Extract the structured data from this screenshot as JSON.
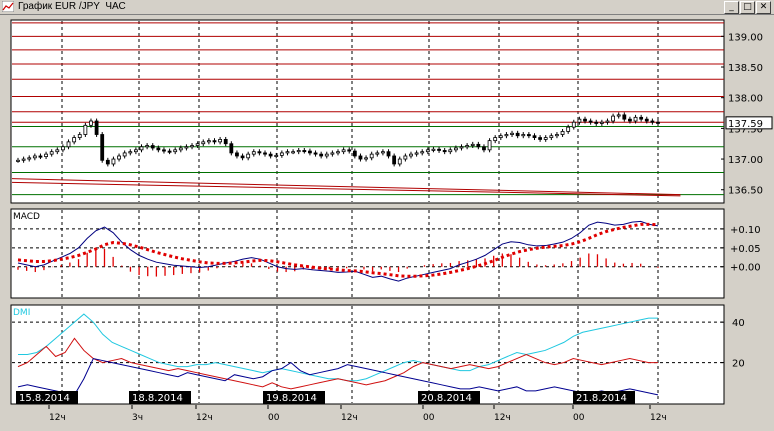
{
  "window": {
    "title": "График EUR /JPY  ЧАС",
    "minimize_label": "_",
    "maximize_label": "□",
    "close_label": "✕"
  },
  "colors": {
    "background": "#ffffff",
    "frame": "#d4d0c8",
    "grid": "#000000",
    "resistance_line": "#b00000",
    "support_line": "#007000",
    "macd_line": "#000080",
    "macd_signal": "#e00000",
    "macd_hist": "#e00000",
    "dmi_adx": "#20c8e0",
    "dmi_plus": "#d01010",
    "dmi_minus": "#000090",
    "label_text": "#000000",
    "date_label_bg": "#000000",
    "date_label_text": "#ffffff",
    "price_marker_bg": "#ffffff"
  },
  "chart_data": [
    {
      "type": "candlestick",
      "panel": "price",
      "symbol": "EUR/JPY",
      "timeframe": "1H",
      "ylim": [
        136.3,
        139.25
      ],
      "yticks": [
        137.0,
        137.5,
        138.0,
        138.5,
        139.0,
        136.5
      ],
      "ytick_labels": [
        "137.00",
        "137.50",
        "138.00",
        "138.50",
        "139.00",
        "136.50"
      ],
      "last_price_label": "137.59",
      "last_price": 137.59,
      "grid": true,
      "horizontal_levels_red": [
        139.22,
        139.0,
        138.78,
        138.55,
        138.3,
        138.02,
        137.77,
        137.6
      ],
      "horizontal_levels_green": [
        137.53,
        137.2,
        136.78,
        136.42
      ],
      "trendlines": [
        {
          "from_x": 0,
          "from_y": 136.68,
          "to_x": 118,
          "to_y": 136.42,
          "color": "red"
        },
        {
          "from_x": 0,
          "from_y": 136.62,
          "to_x": 118,
          "to_y": 136.4,
          "color": "darkred"
        }
      ],
      "close": [
        136.98,
        137.0,
        137.02,
        137.05,
        137.04,
        137.08,
        137.12,
        137.15,
        137.2,
        137.28,
        137.35,
        137.4,
        137.55,
        137.62,
        137.4,
        136.98,
        136.92,
        137.0,
        137.05,
        137.1,
        137.12,
        137.15,
        137.2,
        137.22,
        137.18,
        137.15,
        137.13,
        137.12,
        137.15,
        137.18,
        137.2,
        137.22,
        137.25,
        137.28,
        137.3,
        137.28,
        137.32,
        137.25,
        137.1,
        137.05,
        137.02,
        137.08,
        137.12,
        137.1,
        137.08,
        137.05,
        137.06,
        137.1,
        137.12,
        137.12,
        137.14,
        137.13,
        137.1,
        137.08,
        137.05,
        137.08,
        137.1,
        137.12,
        137.15,
        137.13,
        137.05,
        137.0,
        137.02,
        137.08,
        137.1,
        137.12,
        137.05,
        136.92,
        137.0,
        137.05,
        137.08,
        137.1,
        137.12,
        137.15,
        137.16,
        137.14,
        137.12,
        137.15,
        137.18,
        137.2,
        137.22,
        137.24,
        137.2,
        137.15,
        137.3,
        137.35,
        137.38,
        137.4,
        137.42,
        137.38,
        137.4,
        137.38,
        137.35,
        137.32,
        137.35,
        137.38,
        137.4,
        137.45,
        137.52,
        137.6,
        137.65,
        137.62,
        137.6,
        137.58,
        137.6,
        137.62,
        137.7,
        137.72,
        137.65,
        137.62,
        137.68,
        137.65,
        137.62,
        137.6,
        137.59
      ],
      "x_date_labels": [
        "15.8.2014",
        "18.8.2014",
        "19.8.2014",
        "20.8.2014",
        "21.8.2014"
      ],
      "x_hour_labels": [
        "12ч",
        "3ч",
        "12ч",
        "00",
        "12ч",
        "00",
        "12ч",
        "00",
        "12ч"
      ]
    },
    {
      "type": "line",
      "panel": "macd",
      "title": "MACD",
      "ylim": [
        -0.08,
        0.15
      ],
      "yticks": [
        0.1,
        0.05,
        0.0
      ],
      "ytick_labels": [
        "+0.10",
        "+0.05",
        "+0.00"
      ],
      "series": [
        {
          "key": "macd",
          "values": [
            0.01,
            0.005,
            0.0,
            0.005,
            0.015,
            0.025,
            0.035,
            0.05,
            0.075,
            0.095,
            0.105,
            0.09,
            0.065,
            0.045,
            0.03,
            0.02,
            0.012,
            0.008,
            0.004,
            0.002,
            0.0,
            -0.002,
            0.0,
            0.005,
            0.01,
            0.014,
            0.02,
            0.024,
            0.02,
            0.01,
            0.0,
            -0.005,
            -0.007,
            -0.005,
            -0.008,
            -0.01,
            -0.012,
            -0.015,
            -0.014,
            -0.012,
            -0.02,
            -0.028,
            -0.025,
            -0.032,
            -0.038,
            -0.03,
            -0.025,
            -0.02,
            -0.015,
            -0.01,
            -0.005,
            0.005,
            0.012,
            0.02,
            0.03,
            0.045,
            0.06,
            0.066,
            0.064,
            0.058,
            0.055,
            0.056,
            0.06,
            0.065,
            0.075,
            0.09,
            0.11,
            0.118,
            0.115,
            0.11,
            0.112,
            0.118,
            0.12,
            0.112,
            0.108
          ]
        },
        {
          "key": "signal",
          "values": [
            0.018,
            0.016,
            0.014,
            0.014,
            0.016,
            0.02,
            0.024,
            0.03,
            0.038,
            0.047,
            0.058,
            0.064,
            0.062,
            0.058,
            0.052,
            0.045,
            0.038,
            0.032,
            0.026,
            0.021,
            0.017,
            0.013,
            0.01,
            0.009,
            0.009,
            0.01,
            0.012,
            0.015,
            0.017,
            0.016,
            0.013,
            0.009,
            0.005,
            0.002,
            -0.001,
            -0.004,
            -0.006,
            -0.008,
            -0.01,
            -0.011,
            -0.013,
            -0.016,
            -0.018,
            -0.021,
            -0.024,
            -0.025,
            -0.025,
            -0.024,
            -0.022,
            -0.019,
            -0.015,
            -0.01,
            -0.005,
            0.001,
            0.008,
            0.016,
            0.025,
            0.033,
            0.04,
            0.045,
            0.049,
            0.052,
            0.054,
            0.056,
            0.06,
            0.066,
            0.075,
            0.085,
            0.093,
            0.099,
            0.104,
            0.108,
            0.112,
            0.112,
            0.111
          ]
        }
      ],
      "histogram": [
        -0.008,
        -0.011,
        -0.014,
        -0.009,
        -0.001,
        0.005,
        0.011,
        0.02,
        0.037,
        0.048,
        0.047,
        0.026,
        0.003,
        -0.013,
        -0.022,
        -0.025,
        -0.026,
        -0.024,
        -0.022,
        -0.019,
        -0.017,
        -0.015,
        -0.01,
        -0.004,
        0.001,
        0.004,
        0.008,
        0.009,
        0.003,
        -0.006,
        -0.013,
        -0.014,
        -0.012,
        -0.007,
        -0.007,
        -0.006,
        -0.006,
        -0.007,
        -0.004,
        -0.001,
        -0.007,
        -0.012,
        -0.007,
        -0.011,
        -0.014,
        -0.005,
        0.0,
        0.004,
        0.007,
        0.009,
        0.01,
        0.015,
        0.017,
        0.019,
        0.022,
        0.029,
        0.035,
        0.033,
        0.024,
        0.013,
        0.006,
        0.004,
        0.006,
        0.009,
        0.015,
        0.024,
        0.035,
        0.033,
        0.022,
        0.011,
        0.008,
        0.01,
        0.008,
        0.0,
        -0.003
      ]
    },
    {
      "type": "line",
      "panel": "dmi",
      "title": "DMI",
      "ylim": [
        0,
        48
      ],
      "yticks": [
        40,
        20
      ],
      "ytick_labels": [
        "40",
        "20"
      ],
      "series": [
        {
          "key": "adx",
          "values": [
            24,
            24,
            25,
            28,
            32,
            36,
            40,
            44,
            40,
            34,
            30,
            28,
            26,
            24,
            22,
            20,
            19,
            18,
            18,
            19,
            19,
            20,
            19,
            18,
            17,
            16,
            15,
            16,
            17,
            16,
            15,
            14,
            13,
            12,
            12,
            11,
            11,
            12,
            14,
            16,
            18,
            20,
            21,
            20,
            19,
            18,
            17,
            16,
            16,
            18,
            19,
            21,
            23,
            25,
            24,
            25,
            26,
            28,
            30,
            33,
            35,
            36,
            37,
            38,
            39,
            40,
            41,
            42,
            42
          ]
        },
        {
          "key": "plus_di",
          "values": [
            18,
            20,
            24,
            28,
            23,
            25,
            32,
            26,
            22,
            20,
            21,
            22,
            20,
            19,
            18,
            17,
            16,
            17,
            16,
            15,
            14,
            13,
            12,
            11,
            10,
            9,
            8,
            10,
            8,
            7,
            8,
            9,
            10,
            11,
            12,
            11,
            10,
            9,
            10,
            11,
            13,
            15,
            18,
            20,
            19,
            18,
            17,
            18,
            19,
            18,
            17,
            18,
            20,
            22,
            24,
            22,
            20,
            19,
            20,
            22,
            21,
            20,
            19,
            20,
            21,
            22,
            21,
            20,
            20
          ]
        },
        {
          "key": "minus_di",
          "values": [
            8,
            9,
            8,
            7,
            6,
            5,
            4,
            12,
            22,
            21,
            20,
            19,
            18,
            17,
            16,
            15,
            14,
            13,
            15,
            14,
            13,
            12,
            11,
            14,
            13,
            12,
            13,
            16,
            17,
            20,
            16,
            14,
            15,
            16,
            17,
            19,
            18,
            17,
            16,
            15,
            14,
            13,
            12,
            11,
            10,
            9,
            8,
            7,
            7,
            8,
            7,
            6,
            7,
            8,
            6,
            6,
            7,
            8,
            7,
            6,
            5,
            5,
            6,
            5,
            6,
            7,
            6,
            5,
            4
          ]
        }
      ]
    }
  ]
}
